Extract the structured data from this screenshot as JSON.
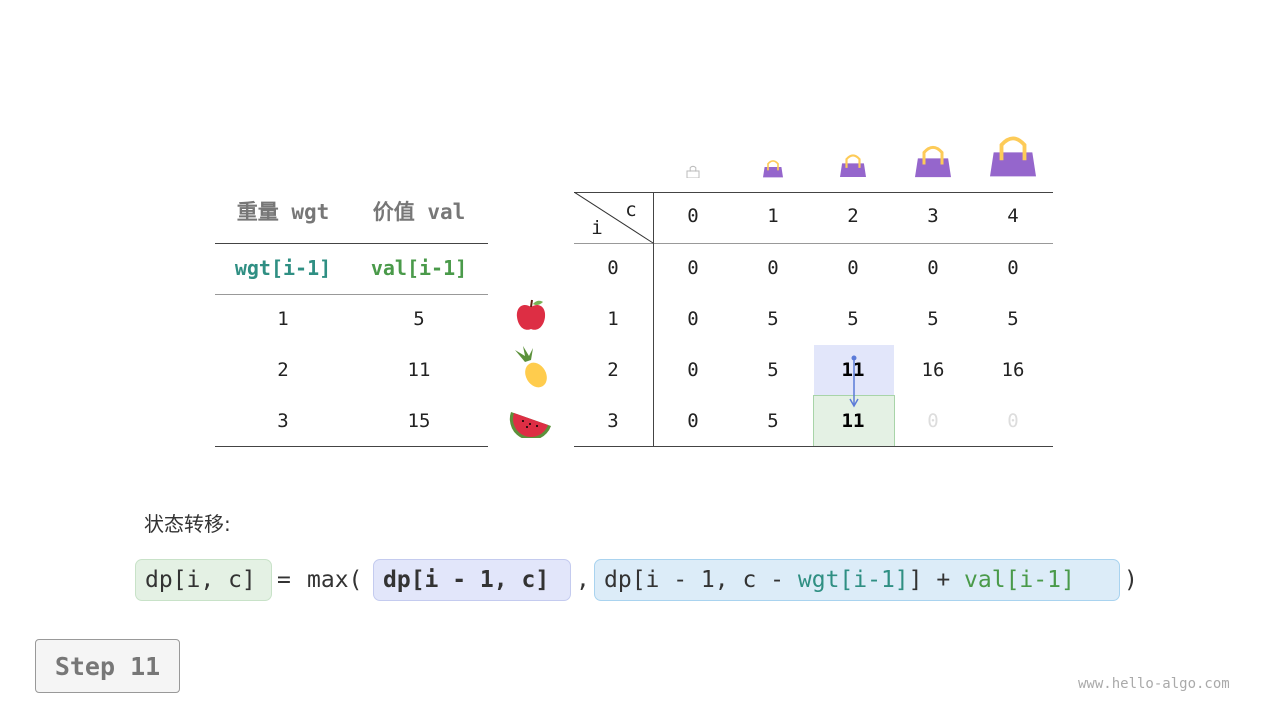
{
  "left_table": {
    "headers": [
      "重量 wgt",
      "价值 val"
    ],
    "subheaders": [
      "wgt[i-1]",
      "val[i-1]"
    ],
    "rows": [
      [
        "1",
        "5"
      ],
      [
        "2",
        "11"
      ],
      [
        "3",
        "15"
      ]
    ]
  },
  "dp_table": {
    "corner_row_label": "i",
    "corner_col_label": "c",
    "col_headers": [
      "0",
      "1",
      "2",
      "3",
      "4"
    ],
    "row_headers": [
      "0",
      "1",
      "2",
      "3"
    ],
    "rows": [
      [
        "0",
        "0",
        "0",
        "0",
        "0"
      ],
      [
        "0",
        "5",
        "5",
        "5",
        "5"
      ],
      [
        "0",
        "5",
        "11",
        "16",
        "16"
      ],
      [
        "0",
        "5",
        "11",
        "0",
        "0"
      ]
    ],
    "items": [
      "apple",
      "pineapple",
      "watermelon"
    ],
    "highlight_source": [
      2,
      2
    ],
    "highlight_target": [
      3,
      2
    ]
  },
  "colors": {
    "wgt": "#2f8f83",
    "val": "#4a9a4a",
    "bag": "#9566cc",
    "source_bg": "#e2e6fa",
    "target_bg": "#e4f1e4"
  },
  "label": "状态转移:",
  "formula": {
    "lhs": "dp[i, c]",
    "eq": "=",
    "max": "max(",
    "arg1": "dp[i - 1, c]",
    "comma": ",",
    "arg2_a": "dp[i - 1, c - ",
    "arg2_wgt": "wgt[i-1]",
    "arg2_b": "] + ",
    "arg2_val": "val[i-1]",
    "close": ")"
  },
  "step": "Step 11",
  "watermark": "www.hello-algo.com"
}
